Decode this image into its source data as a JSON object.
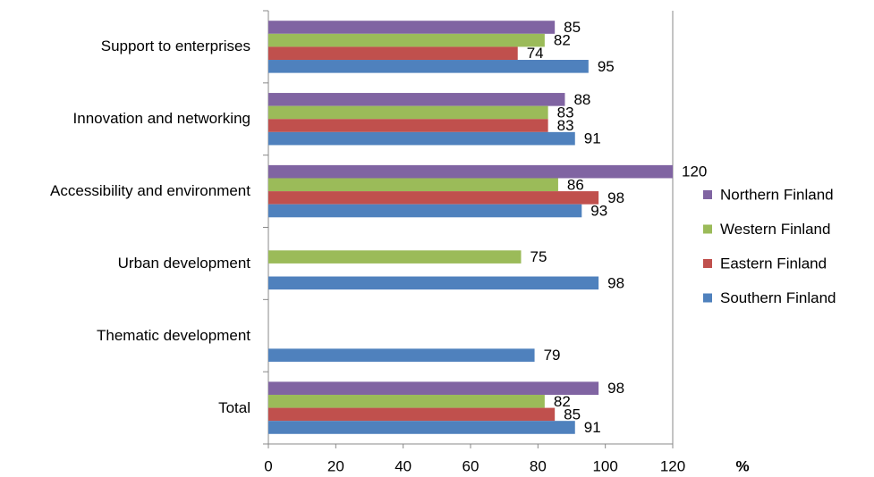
{
  "chart_data": {
    "type": "hbar",
    "categories": [
      "Support to enterprises",
      "Innovation and networking",
      "Accessibility and environment",
      "Urban development",
      "Thematic development",
      "Total"
    ],
    "series": [
      {
        "name": "Northern Finland",
        "color": "#8064a2",
        "values": [
          85,
          88,
          120,
          null,
          null,
          98
        ]
      },
      {
        "name": "Western Finland",
        "color": "#9bbb59",
        "values": [
          82,
          83,
          86,
          75,
          null,
          82
        ]
      },
      {
        "name": "Eastern Finland",
        "color": "#c0504d",
        "values": [
          74,
          83,
          98,
          null,
          null,
          85
        ]
      },
      {
        "name": "Southern Finland",
        "color": "#4f81bd",
        "values": [
          95,
          91,
          93,
          98,
          79,
          91
        ]
      }
    ],
    "xlabel": "%",
    "xlim": [
      0,
      120
    ],
    "xticks": [
      0,
      20,
      40,
      60,
      80,
      100,
      120
    ],
    "grid": false,
    "legend": "right"
  }
}
